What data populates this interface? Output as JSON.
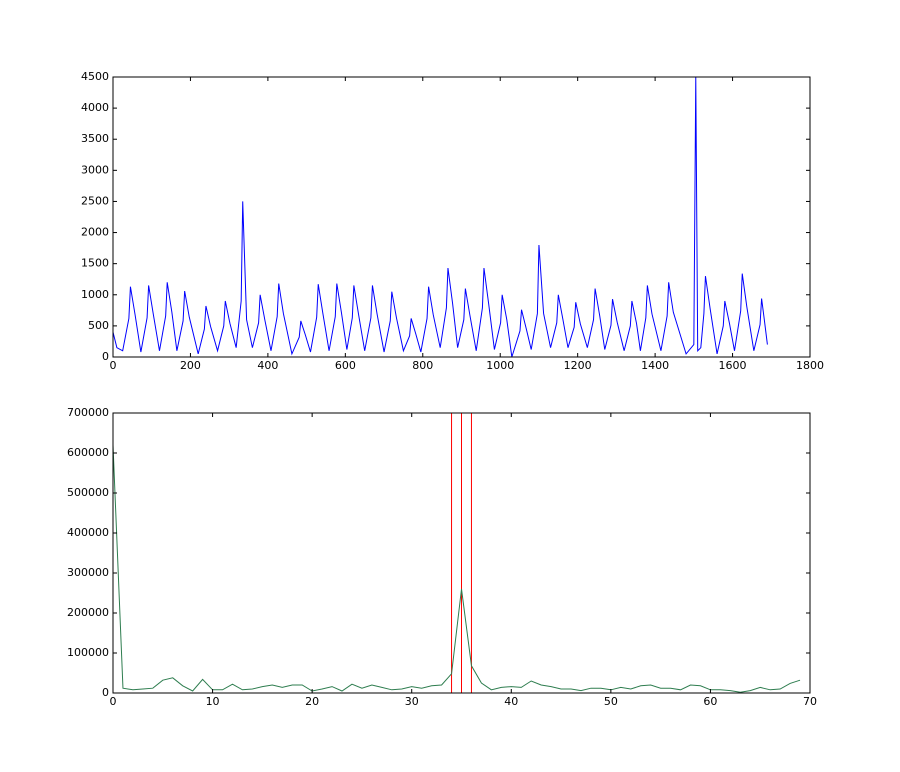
{
  "chart_data": [
    {
      "type": "line",
      "x": [
        0,
        10,
        25,
        41,
        45,
        57,
        72,
        88,
        92,
        104,
        120,
        136,
        140,
        152,
        165,
        181,
        185,
        197,
        220,
        236,
        240,
        252,
        270,
        286,
        290,
        302,
        318,
        331,
        335,
        345,
        360,
        376,
        380,
        392,
        408,
        424,
        428,
        440,
        462,
        481,
        485,
        497,
        510,
        526,
        530,
        542,
        558,
        574,
        578,
        590,
        604,
        618,
        622,
        634,
        650,
        666,
        670,
        682,
        700,
        716,
        720,
        732,
        750,
        766,
        770,
        782,
        795,
        811,
        815,
        827,
        845,
        861,
        865,
        877,
        890,
        906,
        910,
        922,
        938,
        954,
        958,
        970,
        985,
        1001,
        1005,
        1017,
        1030,
        1051,
        1055,
        1067,
        1080,
        1096,
        1100,
        1112,
        1130,
        1146,
        1150,
        1162,
        1175,
        1191,
        1195,
        1207,
        1225,
        1241,
        1245,
        1257,
        1270,
        1286,
        1290,
        1302,
        1320,
        1336,
        1340,
        1352,
        1362,
        1376,
        1380,
        1392,
        1415,
        1431,
        1435,
        1447,
        1480,
        1500,
        1505,
        1510,
        1518,
        1526,
        1530,
        1542,
        1560,
        1576,
        1580,
        1592,
        1605,
        1621,
        1625,
        1637,
        1655,
        1671,
        1675,
        1682,
        1690
      ],
      "series": [
        {
          "color": "#0000ff",
          "values": [
            400,
            150,
            100,
            620,
            1130,
            680,
            80,
            630,
            1150,
            690,
            100,
            660,
            1200,
            720,
            100,
            580,
            1060,
            640,
            50,
            450,
            820,
            490,
            100,
            500,
            900,
            540,
            150,
            900,
            2500,
            600,
            150,
            550,
            1000,
            600,
            100,
            650,
            1180,
            700,
            50,
            320,
            580,
            350,
            80,
            640,
            1170,
            700,
            100,
            650,
            1180,
            710,
            120,
            630,
            1150,
            690,
            100,
            630,
            1150,
            690,
            80,
            580,
            1050,
            630,
            100,
            340,
            620,
            370,
            80,
            620,
            1130,
            680,
            150,
            790,
            1430,
            860,
            150,
            600,
            1100,
            660,
            100,
            790,
            1430,
            860,
            120,
            550,
            1000,
            600,
            0,
            420,
            760,
            460,
            120,
            700,
            1800,
            700,
            150,
            550,
            1000,
            600,
            150,
            480,
            880,
            530,
            150,
            600,
            1100,
            660,
            120,
            510,
            930,
            560,
            100,
            500,
            900,
            540,
            100,
            630,
            1150,
            690,
            100,
            660,
            1200,
            720,
            50,
            200,
            4500,
            100,
            150,
            700,
            1300,
            780,
            50,
            500,
            900,
            540,
            100,
            740,
            1340,
            800,
            100,
            520,
            940,
            600,
            200
          ]
        }
      ],
      "xlim": [
        0,
        1800
      ],
      "xticks": [
        0,
        200,
        400,
        600,
        800,
        1000,
        1200,
        1400,
        1600,
        1800
      ],
      "ylim": [
        0,
        4500
      ],
      "yticks": [
        0,
        500,
        1000,
        1500,
        2000,
        2500,
        3000,
        3500,
        4000,
        4500
      ]
    },
    {
      "type": "line",
      "x": [
        0,
        1,
        2,
        3,
        4,
        5,
        6,
        7,
        8,
        9,
        10,
        11,
        12,
        13,
        14,
        15,
        16,
        17,
        18,
        19,
        20,
        21,
        22,
        23,
        24,
        25,
        26,
        27,
        28,
        29,
        30,
        31,
        32,
        33,
        34,
        35,
        36,
        37,
        38,
        39,
        40,
        41,
        42,
        43,
        44,
        45,
        46,
        47,
        48,
        49,
        50,
        51,
        52,
        53,
        54,
        55,
        56,
        57,
        58,
        59,
        60,
        61,
        62,
        63,
        64,
        65,
        66,
        67,
        68,
        69
      ],
      "series": [
        {
          "color": "#2e7d4f",
          "values": [
            620000,
            12000,
            8000,
            10000,
            12000,
            32000,
            38000,
            18000,
            5000,
            34000,
            8000,
            8000,
            22000,
            8000,
            10000,
            16000,
            20000,
            14000,
            20000,
            20000,
            5000,
            10000,
            16000,
            5000,
            22000,
            12000,
            20000,
            14000,
            8000,
            10000,
            16000,
            12000,
            18000,
            20000,
            48000,
            260000,
            68000,
            25000,
            8000,
            14000,
            16000,
            14000,
            30000,
            20000,
            16000,
            10000,
            10000,
            6000,
            12000,
            12000,
            8000,
            14000,
            10000,
            18000,
            20000,
            12000,
            12000,
            8000,
            20000,
            18000,
            8000,
            8000,
            6000,
            2000,
            6000,
            14000,
            8000,
            10000,
            24000,
            32000
          ]
        }
      ],
      "vlines": [
        34,
        35,
        36
      ],
      "vline_color": "#ff0000",
      "xlim": [
        0,
        70
      ],
      "xticks": [
        0,
        10,
        20,
        30,
        40,
        50,
        60,
        70
      ],
      "ylim": [
        0,
        700000
      ],
      "yticks": [
        0,
        100000,
        200000,
        300000,
        400000,
        500000,
        600000,
        700000
      ]
    }
  ]
}
